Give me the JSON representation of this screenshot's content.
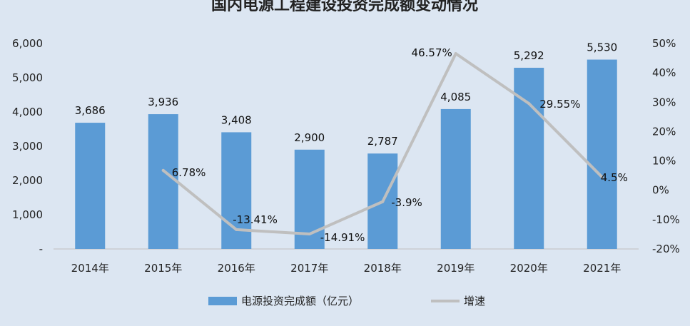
{
  "chart_data": {
    "type": "bar",
    "title": "国内电源工程建设投资完成额变动情况",
    "categories": [
      "2014年",
      "2015年",
      "2016年",
      "2017年",
      "2018年",
      "2019年",
      "2020年",
      "2021年"
    ],
    "series": [
      {
        "name": "电源投资完成额（亿元）",
        "type": "bar",
        "axis": "left",
        "values": [
          3686,
          3936,
          3408,
          2900,
          2787,
          4085,
          5292,
          5530
        ],
        "labels": [
          "3,686",
          "3,936",
          "3,408",
          "2,900",
          "2,787",
          "4,085",
          "5,292",
          "5,530"
        ],
        "color": "#5b9bd5"
      },
      {
        "name": "增速",
        "type": "line",
        "axis": "right",
        "values": [
          null,
          6.78,
          -13.41,
          -14.91,
          -3.9,
          46.57,
          29.55,
          4.5
        ],
        "labels": [
          "",
          "6.78%",
          "-13.41%",
          "-14.91%",
          "-3.9%",
          "46.57%",
          "29.55%",
          "4.5%"
        ],
        "color": "#bfbfbf"
      }
    ],
    "y_left": {
      "ylim": [
        0,
        6000
      ],
      "ticks": [
        0,
        1000,
        2000,
        3000,
        4000,
        5000,
        6000
      ],
      "tick_labels": [
        "-",
        "1,000",
        "2,000",
        "3,000",
        "4,000",
        "5,000",
        "6,000"
      ]
    },
    "y_right": {
      "ylim": [
        -20,
        50
      ],
      "ticks": [
        -20,
        -10,
        0,
        10,
        20,
        30,
        40,
        50
      ],
      "tick_labels": [
        "-20%",
        "-10%",
        "0%",
        "10%",
        "20%",
        "30%",
        "40%",
        "50%"
      ]
    },
    "grid": false,
    "legend_position": "bottom"
  }
}
